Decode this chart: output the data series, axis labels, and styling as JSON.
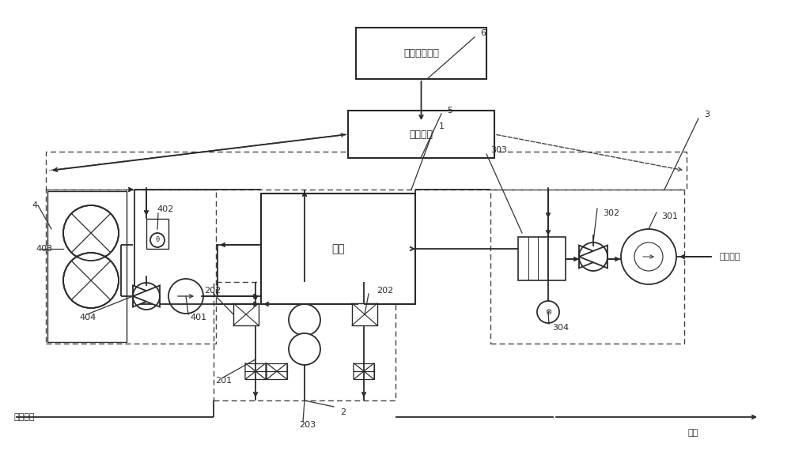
{
  "bg_color": "#ffffff",
  "lc": "#2a2a2a",
  "lw": 1.3,
  "labels": {
    "env_module": "环境监测模块",
    "ctrl_module": "控制模块",
    "stack": "电堆",
    "air_inlet": "空气入口",
    "h2_inlet": "氢气入口",
    "exhaust": "尾排"
  }
}
